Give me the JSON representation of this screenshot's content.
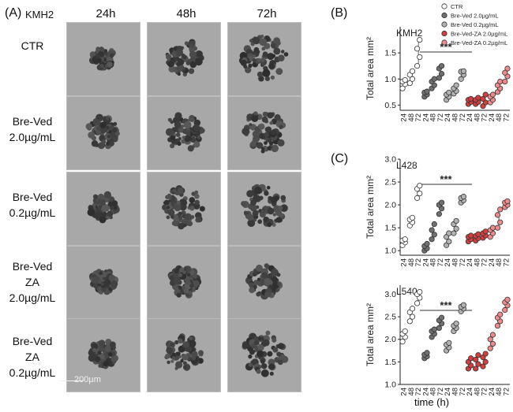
{
  "panel_a": {
    "label": "(A)",
    "cell_line": "KMH2",
    "time_labels": [
      "24h",
      "48h",
      "72h"
    ],
    "conditions": [
      {
        "lines": [
          "CTR"
        ]
      },
      {
        "lines": [
          "Bre-Ved",
          "2.0µg/mL"
        ]
      },
      {
        "lines": [
          "Bre-Ved",
          "0.2µg/mL"
        ]
      },
      {
        "lines": [
          "Bre-Ved",
          "ZA",
          "2.0µg/mL"
        ]
      },
      {
        "lines": [
          "Bre-Ved",
          "ZA",
          "0.2µg/mL"
        ]
      }
    ],
    "scale_bar": "200µm"
  },
  "panel_b": {
    "label": "(B)"
  },
  "panel_c": {
    "label": "(C)"
  },
  "x_axis_title": "time (h)",
  "colors": {
    "ctr": "#ffffff",
    "bv_high": "#6f6f6f",
    "bv_low": "#b2b2b2",
    "za_high": "#d23f3f",
    "za_low": "#ee8a8a"
  },
  "chart_data": [
    {
      "type": "scatter",
      "title": "KMH2",
      "ylabel": "Total area mm²",
      "xlabel": "",
      "ylim": [
        0.4,
        2.0
      ],
      "yticks": [
        0.5,
        1.0,
        1.5
      ],
      "ytick_labels": [
        "0.5",
        "1.0",
        "1.5"
      ],
      "x_tick_labels": [
        "24",
        "48",
        "72",
        "24",
        "48",
        "72",
        "24",
        "48",
        "72",
        "24",
        "48",
        "72",
        "24",
        "48",
        "72"
      ],
      "significance": "***",
      "legend": [
        "CTR",
        "Bre-Ved 2.0µg/mL",
        "Bre-Ved 0.2µg/mL",
        "Bre-Ved-ZA 2.0µg/mL",
        "Bre-Ved-ZA 0.2µg/mL"
      ],
      "series": [
        {
          "name": "CTR",
          "color": "#ffffff",
          "groups": [
            [
              0.82,
              0.9,
              0.95,
              0.98
            ],
            [
              0.92,
              1.0,
              1.08,
              1.15
            ],
            [
              1.25,
              1.42,
              1.58,
              1.75
            ]
          ]
        },
        {
          "name": "Bre-Ved 2.0µg/mL",
          "color": "#6f6f6f",
          "groups": [
            [
              0.66,
              0.7,
              0.74,
              0.76
            ],
            [
              0.82,
              0.88,
              0.95,
              1.0
            ],
            [
              1.02,
              1.1,
              1.2,
              1.25
            ]
          ]
        },
        {
          "name": "Bre-Ved 0.2µg/mL",
          "color": "#b2b2b2",
          "groups": [
            [
              0.6,
              0.66,
              0.7,
              0.74
            ],
            [
              0.72,
              0.77,
              0.82,
              0.88
            ],
            [
              1.0,
              1.08,
              1.14,
              1.15
            ]
          ]
        },
        {
          "name": "Bre-Ved-ZA 2.0µg/mL",
          "color": "#d23f3f",
          "groups": [
            [
              0.52,
              0.56,
              0.6,
              0.62
            ],
            [
              0.52,
              0.56,
              0.6,
              0.64
            ],
            [
              0.48,
              0.55,
              0.62,
              0.7
            ]
          ]
        },
        {
          "name": "Bre-Ved-ZA 0.2µg/mL",
          "color": "#ee8a8a",
          "groups": [
            [
              0.55,
              0.6,
              0.66,
              0.7
            ],
            [
              0.75,
              0.82,
              0.88,
              0.95
            ],
            [
              0.95,
              1.05,
              1.12,
              1.2
            ]
          ]
        }
      ]
    },
    {
      "type": "scatter",
      "title": "L428",
      "ylabel": "Total area mm²",
      "xlabel": "",
      "ylim": [
        0.9,
        3.0
      ],
      "yticks": [
        1.0,
        1.5,
        2.0,
        2.5,
        3.0
      ],
      "ytick_labels": [
        "1.0",
        "1.5",
        "2.0",
        "2.5",
        "3.0"
      ],
      "x_tick_labels": [
        "24",
        "48",
        "72",
        "24",
        "48",
        "72",
        "24",
        "48",
        "72",
        "24",
        "48",
        "72",
        "24",
        "48",
        "72"
      ],
      "significance": "***",
      "series": [
        {
          "name": "CTR",
          "color": "#ffffff",
          "groups": [
            [
              1.12,
              1.18,
              1.22,
              1.25
            ],
            [
              1.55,
              1.62,
              1.68,
              1.72
            ],
            [
              2.15,
              2.25,
              2.35,
              2.42
            ]
          ]
        },
        {
          "name": "Bre-Ved 2.0µg/mL",
          "color": "#6f6f6f",
          "groups": [
            [
              1.0,
              1.05,
              1.1,
              1.15
            ],
            [
              1.25,
              1.35,
              1.45,
              1.58
            ],
            [
              1.8,
              1.92,
              2.0,
              2.05
            ]
          ]
        },
        {
          "name": "Bre-Ved 0.2µg/mL",
          "color": "#b2b2b2",
          "groups": [
            [
              1.12,
              1.2,
              1.3,
              1.38
            ],
            [
              1.38,
              1.48,
              1.58,
              1.65
            ],
            [
              2.05,
              2.1,
              2.15,
              2.18
            ]
          ]
        },
        {
          "name": "Bre-Ved-ZA 2.0µg/mL",
          "color": "#d23f3f",
          "groups": [
            [
              1.2,
              1.25,
              1.3,
              1.33
            ],
            [
              1.22,
              1.27,
              1.32,
              1.36
            ],
            [
              1.28,
              1.33,
              1.38,
              1.42
            ]
          ]
        },
        {
          "name": "Bre-Ved-ZA 0.2µg/mL",
          "color": "#ee8a8a",
          "groups": [
            [
              1.3,
              1.38,
              1.45,
              1.5
            ],
            [
              1.5,
              1.62,
              1.78,
              1.9
            ],
            [
              1.95,
              2.0,
              2.05,
              2.08
            ]
          ]
        }
      ]
    },
    {
      "type": "scatter",
      "title": "L540",
      "ylabel": "Total area mm²",
      "xlabel": "time (h)",
      "ylim": [
        1.0,
        3.2
      ],
      "yticks": [
        1.0,
        1.5,
        2.0,
        2.5,
        3.0
      ],
      "ytick_labels": [
        "1.0",
        "1.5",
        "2.0",
        "2.5",
        "3.0"
      ],
      "x_tick_labels": [
        "24",
        "48",
        "72",
        "24",
        "48",
        "72",
        "24",
        "48",
        "72",
        "24",
        "48",
        "72",
        "24",
        "48",
        "72"
      ],
      "significance": "***",
      "series": [
        {
          "name": "CTR",
          "color": "#ffffff",
          "groups": [
            [
              1.95,
              2.05,
              2.12,
              2.18
            ],
            [
              2.4,
              2.5,
              2.6,
              2.68
            ],
            [
              2.8,
              2.92,
              3.0,
              3.05
            ]
          ]
        },
        {
          "name": "Bre-Ved 2.0µg/mL",
          "color": "#6f6f6f",
          "groups": [
            [
              1.58,
              1.62,
              1.66,
              1.7
            ],
            [
              2.05,
              2.12,
              2.18,
              2.22
            ],
            [
              2.25,
              2.35,
              2.42,
              2.48
            ]
          ]
        },
        {
          "name": "Bre-Ved 0.2µg/mL",
          "color": "#b2b2b2",
          "groups": [
            [
              1.75,
              1.82,
              1.88,
              1.92
            ],
            [
              2.18,
              2.25,
              2.3,
              2.35
            ],
            [
              2.62,
              2.68,
              2.72,
              2.76
            ]
          ]
        },
        {
          "name": "Bre-Ved-ZA 2.0µg/mL",
          "color": "#d23f3f",
          "groups": [
            [
              1.35,
              1.42,
              1.5,
              1.58
            ],
            [
              1.35,
              1.45,
              1.55,
              1.65
            ],
            [
              1.4,
              1.5,
              1.6,
              1.68
            ]
          ]
        },
        {
          "name": "Bre-Ved-ZA 0.2µg/mL",
          "color": "#ee8a8a",
          "groups": [
            [
              1.8,
              1.9,
              2.0,
              2.1
            ],
            [
              2.3,
              2.4,
              2.48,
              2.55
            ],
            [
              2.65,
              2.75,
              2.82,
              2.88
            ]
          ]
        }
      ]
    }
  ]
}
